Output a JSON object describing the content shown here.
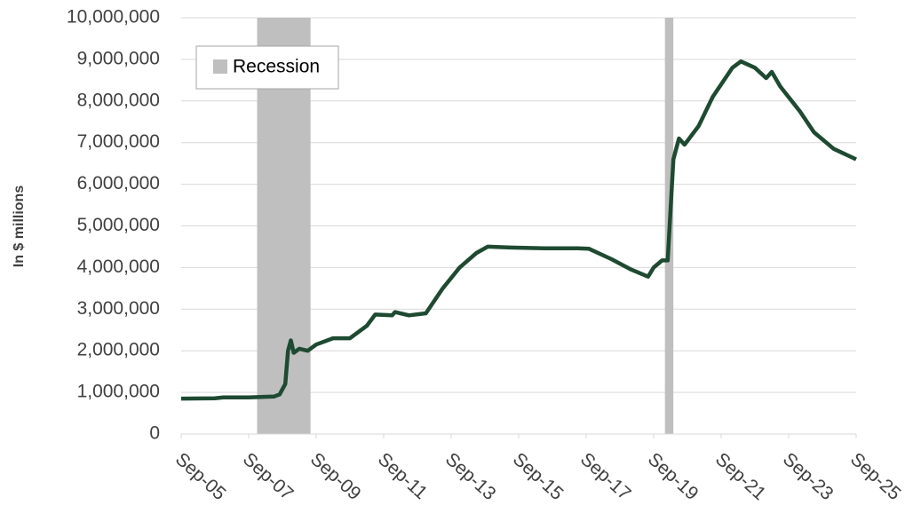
{
  "chart_data": {
    "type": "line",
    "y_label": "In $ millions",
    "color": "#1e4a31",
    "grid": true,
    "x": [
      "2005-09",
      "2006-09",
      "2006-12",
      "2007-09",
      "2008-06",
      "2008-08",
      "2008-10",
      "2008-11",
      "2008-12",
      "2009-01",
      "2009-03",
      "2009-06",
      "2009-09",
      "2010-03",
      "2010-09",
      "2011-03",
      "2011-06",
      "2011-12",
      "2012-01",
      "2012-06",
      "2012-12",
      "2013-06",
      "2013-12",
      "2014-06",
      "2014-10",
      "2015-06",
      "2016-06",
      "2017-06",
      "2017-10",
      "2018-06",
      "2019-01",
      "2019-07",
      "2019-09",
      "2019-12",
      "2020-02",
      "2020-04",
      "2020-06",
      "2020-08",
      "2021-01",
      "2021-06",
      "2022-01",
      "2022-04",
      "2022-09",
      "2023-01",
      "2023-03",
      "2023-06",
      "2024-01",
      "2024-06",
      "2025-01",
      "2025-09"
    ],
    "values": [
      850000,
      860000,
      880000,
      880000,
      900000,
      950000,
      1200000,
      2000000,
      2250000,
      1950000,
      2050000,
      2000000,
      2150000,
      2300000,
      2300000,
      2600000,
      2870000,
      2850000,
      2930000,
      2850000,
      2900000,
      3500000,
      4000000,
      4350000,
      4500000,
      4480000,
      4460000,
      4460000,
      4450000,
      4200000,
      3950000,
      3780000,
      4000000,
      4170000,
      4170000,
      6600000,
      7100000,
      6950000,
      7400000,
      8100000,
      8800000,
      8950000,
      8800000,
      8550000,
      8700000,
      8350000,
      7750000,
      7250000,
      6850000,
      6600000
    ],
    "xlim": [
      "2005-09",
      "2025-09"
    ],
    "xticks": [
      {
        "value": "2005-09",
        "label": "Sep-05"
      },
      {
        "value": "2007-09",
        "label": "Sep-07"
      },
      {
        "value": "2009-09",
        "label": "Sep-09"
      },
      {
        "value": "2011-09",
        "label": "Sep-11"
      },
      {
        "value": "2013-09",
        "label": "Sep-13"
      },
      {
        "value": "2015-09",
        "label": "Sep-15"
      },
      {
        "value": "2017-09",
        "label": "Sep-17"
      },
      {
        "value": "2019-09",
        "label": "Sep-19"
      },
      {
        "value": "2021-09",
        "label": "Sep-21"
      },
      {
        "value": "2023-09",
        "label": "Sep-23"
      },
      {
        "value": "2025-09",
        "label": "Sep-25"
      }
    ],
    "ylim": [
      0,
      10000000
    ],
    "yticks": [
      0,
      {
        "value": 1000000,
        "label": "1,000,000"
      },
      {
        "value": 2000000,
        "label": "2,000,000"
      },
      {
        "value": 3000000,
        "label": "3,000,000"
      },
      {
        "value": 4000000,
        "label": "4,000,000"
      },
      {
        "value": 5000000,
        "label": "5,000,000"
      },
      {
        "value": 6000000,
        "label": "6,000,000"
      },
      {
        "value": 7000000,
        "label": "7,000,000"
      },
      {
        "value": 8000000,
        "label": "8,000,000"
      },
      {
        "value": 9000000,
        "label": "9,000,000"
      },
      {
        "value": 10000000,
        "label": "10,000,000"
      }
    ],
    "bands": {
      "name": "Recession",
      "color": "#bfbfbf",
      "ranges": [
        {
          "start": "2007-12",
          "end": "2009-07"
        },
        {
          "start": "2020-01",
          "end": "2020-04"
        }
      ]
    }
  }
}
